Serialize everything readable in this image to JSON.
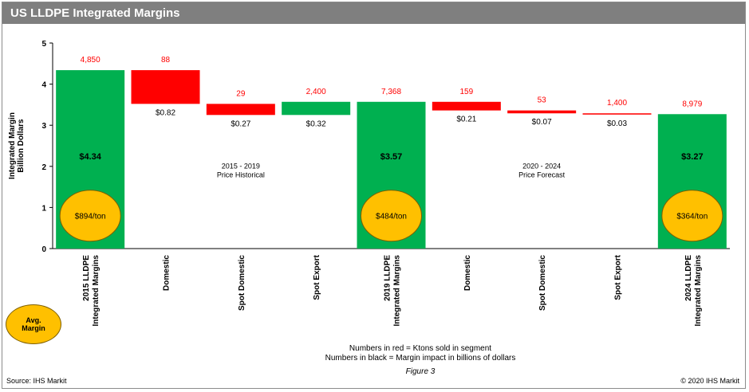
{
  "title": "US LLDPE Integrated Margins",
  "colors": {
    "positive": "#00b050",
    "negative": "#ff0000",
    "avg": "#ffc000",
    "header": "#7f7f7f"
  },
  "chart_data": {
    "type": "bar",
    "subtype": "waterfall",
    "ylabel": "Integrated Margin\nBillion Dollars",
    "ylim": [
      0,
      5
    ],
    "yticks": [
      0,
      1,
      2,
      3,
      4,
      5
    ],
    "categories": [
      "2015 LLDPE Integrated Margins",
      "Domestic",
      "Spot Domestic",
      "Spot Export",
      "2019 LLDPE Integrated Margins",
      "Domestic",
      "Spot Domestic",
      "Spot Export",
      "2024 LLDPE Integrated Margins"
    ],
    "bars": [
      {
        "kind": "total",
        "start": 0,
        "end": 4.34,
        "value_label": "$4.34",
        "ktons": "4,850",
        "avg_margin": "$894/ton"
      },
      {
        "kind": "delta",
        "start": 4.34,
        "end": 3.52,
        "value_label": "$0.82",
        "ktons": "88"
      },
      {
        "kind": "delta",
        "start": 3.52,
        "end": 3.25,
        "value_label": "$0.27",
        "ktons": "29"
      },
      {
        "kind": "delta",
        "start": 3.25,
        "end": 3.57,
        "value_label": "$0.32",
        "ktons": "2,400"
      },
      {
        "kind": "total",
        "start": 0,
        "end": 3.57,
        "value_label": "$3.57",
        "ktons": "7,368",
        "avg_margin": "$484/ton"
      },
      {
        "kind": "delta",
        "start": 3.57,
        "end": 3.36,
        "value_label": "$0.21",
        "ktons": "159"
      },
      {
        "kind": "delta",
        "start": 3.36,
        "end": 3.29,
        "value_label": "$0.07",
        "ktons": "53"
      },
      {
        "kind": "delta",
        "start": 3.29,
        "end": 3.26,
        "value_label": "$0.03",
        "ktons": "1,400"
      },
      {
        "kind": "total",
        "start": 0,
        "end": 3.27,
        "value_label": "$3.27",
        "ktons": "8,979",
        "avg_margin": "$364/ton"
      }
    ],
    "annotations": [
      {
        "text": "2015 - 2019\nPrice Historical",
        "after_bar": 2
      },
      {
        "text": "2020 - 2024\nPrice Forecast",
        "after_bar": 6
      }
    ],
    "legend_circle": "Avg.\nMargin"
  },
  "notes": {
    "line1": "Numbers in red = Ktons sold in segment",
    "line2": "Numbers in black = Margin impact in billions of dollars",
    "figure": "Figure 3"
  },
  "source": "Source: IHS Markit",
  "copyright": "© 2020 IHS Markit"
}
